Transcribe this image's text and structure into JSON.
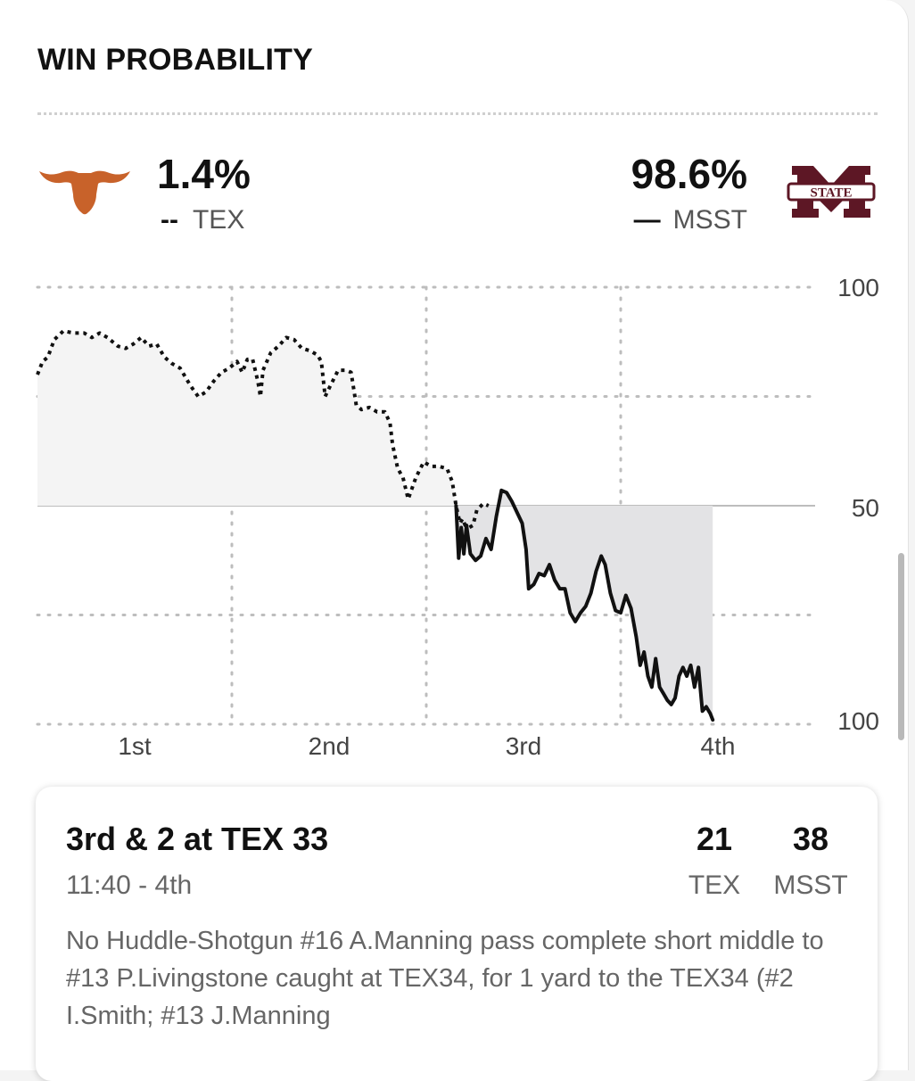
{
  "header": {
    "title": "WIN PROBABILITY"
  },
  "teams": {
    "away": {
      "abbr": "TEX",
      "probability": "1.4%",
      "legend_marker": "--",
      "color": "#c8622a",
      "line_style": "dotted"
    },
    "home": {
      "abbr": "MSST",
      "probability": "98.6%",
      "legend_marker": "—",
      "color": "#5d1725",
      "logo_text": "STATE",
      "line_style": "solid"
    }
  },
  "chart_data": {
    "type": "line",
    "title": "Win Probability",
    "xlabel": "",
    "ylabel": "",
    "categories": [
      "1st",
      "2nd",
      "3rd",
      "4th"
    ],
    "y_tick_labels": [
      "100",
      "50",
      "100"
    ],
    "ylim": [
      -100,
      100
    ],
    "grid": true,
    "x_range": [
      0,
      60
    ],
    "series": [
      {
        "name": "TEX",
        "style": "dotted",
        "note": "positive values = TEX win probability above 50%",
        "points": [
          [
            0.0,
            60
          ],
          [
            0.4,
            66
          ],
          [
            0.8,
            68
          ],
          [
            1.3,
            76
          ],
          [
            2.0,
            80
          ],
          [
            2.8,
            79
          ],
          [
            3.6,
            79
          ],
          [
            4.2,
            77
          ],
          [
            4.8,
            79
          ],
          [
            5.4,
            77
          ],
          [
            6.2,
            73
          ],
          [
            6.8,
            72
          ],
          [
            7.4,
            74
          ],
          [
            8.0,
            77
          ],
          [
            8.6,
            73
          ],
          [
            9.2,
            74
          ],
          [
            9.8,
            68
          ],
          [
            10.4,
            65
          ],
          [
            11.0,
            63
          ],
          [
            11.8,
            55
          ],
          [
            12.4,
            50
          ],
          [
            13.0,
            52
          ],
          [
            13.6,
            57
          ],
          [
            14.2,
            61
          ],
          [
            14.8,
            63
          ],
          [
            15.4,
            66
          ],
          [
            15.8,
            61
          ],
          [
            16.2,
            67
          ],
          [
            16.6,
            67
          ],
          [
            17.0,
            57
          ],
          [
            17.2,
            50
          ],
          [
            17.4,
            62
          ],
          [
            18.0,
            70
          ],
          [
            18.6,
            73
          ],
          [
            19.2,
            77
          ],
          [
            19.8,
            76
          ],
          [
            20.4,
            72
          ],
          [
            21.0,
            71
          ],
          [
            21.6,
            69
          ],
          [
            21.9,
            66
          ],
          [
            22.2,
            50
          ],
          [
            22.6,
            55
          ],
          [
            23.2,
            62
          ],
          [
            23.8,
            62
          ],
          [
            24.2,
            61
          ],
          [
            24.6,
            46
          ],
          [
            25.0,
            44
          ],
          [
            25.6,
            45
          ],
          [
            26.2,
            43
          ],
          [
            26.8,
            43
          ],
          [
            27.2,
            38
          ],
          [
            27.4,
            28
          ],
          [
            27.8,
            17
          ],
          [
            28.2,
            13
          ],
          [
            28.6,
            3
          ],
          [
            29.2,
            13
          ],
          [
            29.8,
            20
          ],
          [
            30.4,
            18
          ],
          [
            31.0,
            18
          ],
          [
            31.6,
            17
          ],
          [
            32.0,
            11
          ],
          [
            32.3,
            0
          ],
          [
            32.6,
            -8
          ],
          [
            32.8,
            -6
          ],
          [
            33.0,
            -9
          ],
          [
            33.3,
            -10
          ],
          [
            33.6,
            -9
          ],
          [
            33.9,
            -2
          ],
          [
            34.4,
            1
          ],
          [
            34.8,
            0
          ]
        ]
      },
      {
        "name": "MSST",
        "style": "solid",
        "note": "negative values = MSST win probability above 50%",
        "points": [
          [
            32.3,
            0
          ],
          [
            32.5,
            -24
          ],
          [
            32.7,
            -10
          ],
          [
            32.9,
            -22
          ],
          [
            33.1,
            -9
          ],
          [
            33.4,
            -22
          ],
          [
            33.8,
            -25
          ],
          [
            34.2,
            -23
          ],
          [
            34.6,
            -15
          ],
          [
            35.0,
            -20
          ],
          [
            35.4,
            -5
          ],
          [
            35.8,
            7
          ],
          [
            36.2,
            6
          ],
          [
            36.6,
            2
          ],
          [
            37.0,
            -3
          ],
          [
            37.4,
            -8
          ],
          [
            37.7,
            -20
          ],
          [
            37.9,
            -38
          ],
          [
            38.3,
            -36
          ],
          [
            38.7,
            -31
          ],
          [
            39.1,
            -32
          ],
          [
            39.5,
            -27
          ],
          [
            39.9,
            -34
          ],
          [
            40.3,
            -38
          ],
          [
            40.7,
            -38
          ],
          [
            41.1,
            -49
          ],
          [
            41.5,
            -53
          ],
          [
            41.9,
            -49
          ],
          [
            42.3,
            -46
          ],
          [
            42.7,
            -40
          ],
          [
            43.1,
            -30
          ],
          [
            43.5,
            -23
          ],
          [
            43.8,
            -27
          ],
          [
            44.2,
            -40
          ],
          [
            44.6,
            -48
          ],
          [
            45.0,
            -49
          ],
          [
            45.4,
            -41
          ],
          [
            45.8,
            -47
          ],
          [
            46.2,
            -60
          ],
          [
            46.5,
            -73
          ],
          [
            46.8,
            -67
          ],
          [
            47.1,
            -78
          ],
          [
            47.4,
            -83
          ],
          [
            47.7,
            -70
          ],
          [
            48.0,
            -83
          ],
          [
            48.3,
            -86
          ],
          [
            48.6,
            -89
          ],
          [
            48.9,
            -91
          ],
          [
            49.2,
            -88
          ],
          [
            49.5,
            -78
          ],
          [
            49.8,
            -74
          ],
          [
            50.1,
            -78
          ],
          [
            50.4,
            -73
          ],
          [
            50.7,
            -83
          ],
          [
            51.0,
            -74
          ],
          [
            51.3,
            -94
          ],
          [
            51.6,
            -92
          ],
          [
            51.9,
            -95
          ],
          [
            52.1,
            -98
          ]
        ]
      }
    ]
  },
  "play": {
    "down_distance": "3rd & 2 at TEX 33",
    "clock": "11:40 - 4th",
    "away_score": "21",
    "home_score": "38",
    "away_abbr": "TEX",
    "home_abbr": "MSST",
    "description": "No Huddle-Shotgun #16 A.Manning pass complete short middle to #13 P.Livingstone caught at TEX34, for 1 yard to the TEX34 (#2 I.Smith; #13 J.Manning"
  }
}
